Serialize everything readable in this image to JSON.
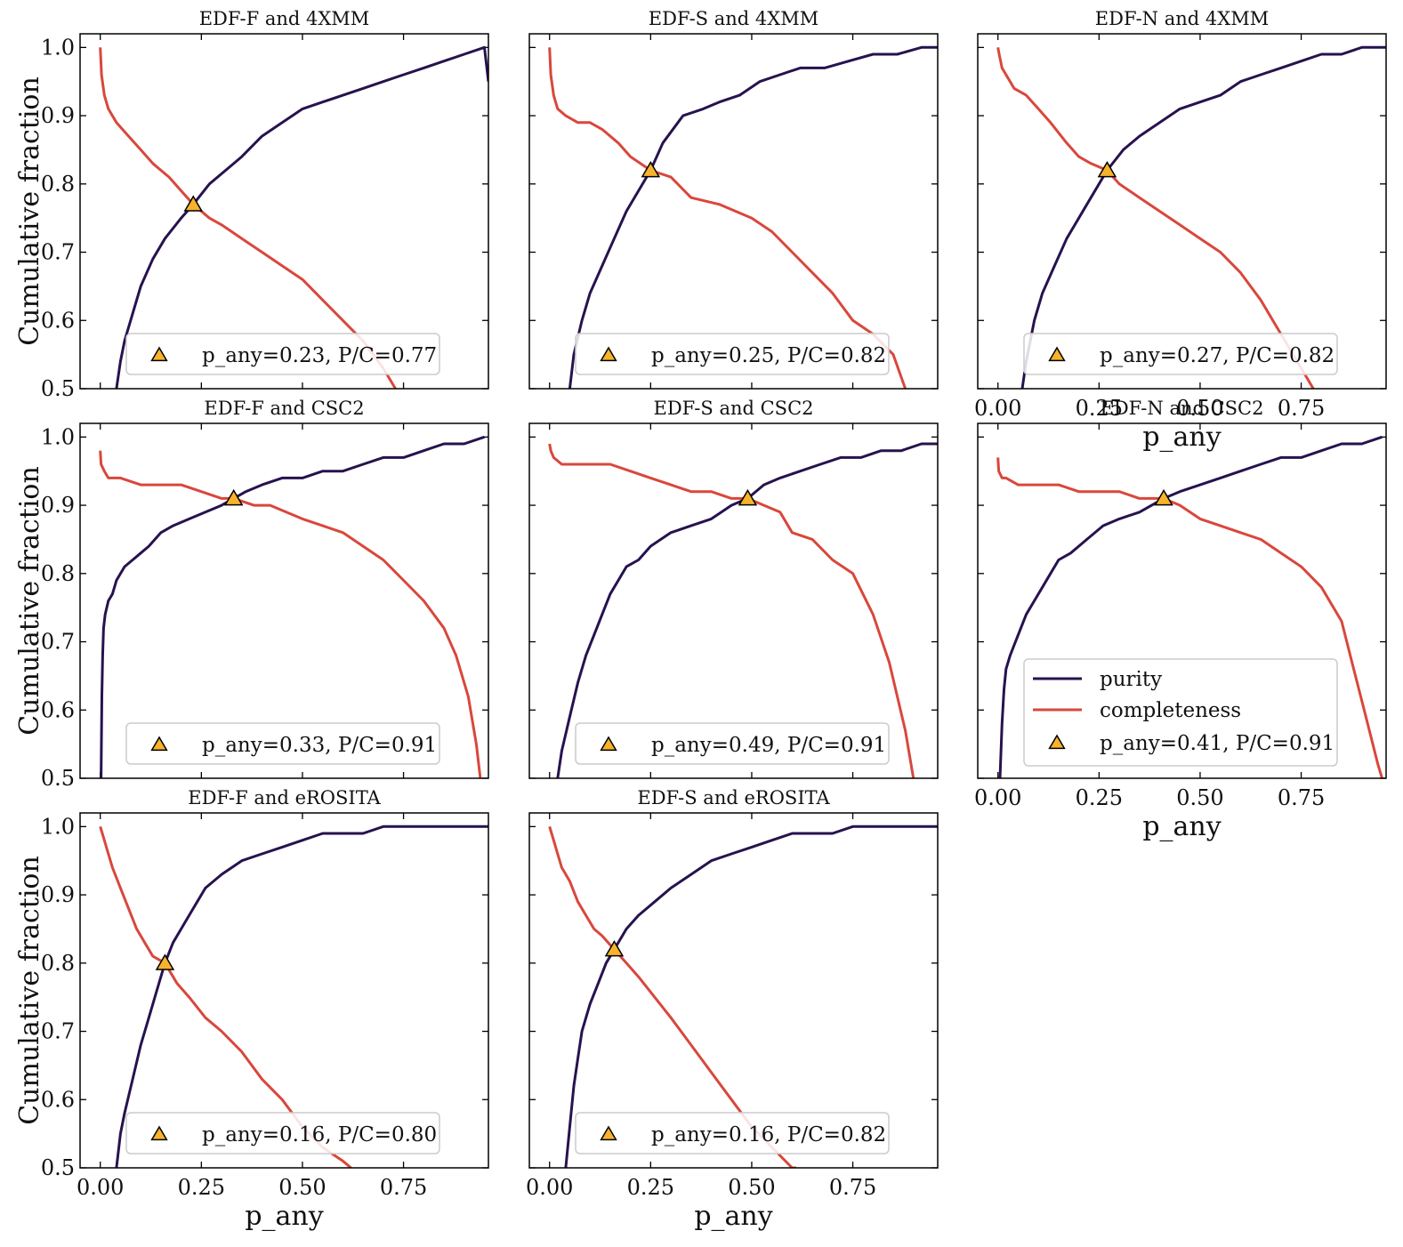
{
  "figure": {
    "ylabel": "Cumulative fraction",
    "xlabel": "p_any",
    "x_ticks": [
      "0.00",
      "0.25",
      "0.50",
      "0.75"
    ],
    "y_ticks": [
      "0.5",
      "0.6",
      "0.7",
      "0.8",
      "0.9",
      "1.0"
    ],
    "legend_labels": {
      "purity": "purity",
      "completeness": "completeness"
    },
    "colors": {
      "purity": "#27124f",
      "completeness": "#d9473c",
      "marker": "#f6b32b"
    }
  },
  "chart_data": [
    {
      "type": "line",
      "title": "EDF-F and 4XMM",
      "xlim": [
        -0.05,
        0.96
      ],
      "ylim": [
        0.5,
        1.02
      ],
      "marker": {
        "x": 0.23,
        "y": 0.77
      },
      "legend": "p_any=0.23, P/C=0.77",
      "series": [
        {
          "name": "purity",
          "x": [
            0.04,
            0.05,
            0.06,
            0.08,
            0.1,
            0.13,
            0.16,
            0.2,
            0.23,
            0.27,
            0.31,
            0.35,
            0.4,
            0.45,
            0.5,
            0.55,
            0.6,
            0.65,
            0.7,
            0.75,
            0.8,
            0.85,
            0.9,
            0.95,
            0.96
          ],
          "y": [
            0.5,
            0.54,
            0.57,
            0.61,
            0.65,
            0.69,
            0.72,
            0.75,
            0.77,
            0.8,
            0.82,
            0.84,
            0.87,
            0.89,
            0.91,
            0.92,
            0.93,
            0.94,
            0.95,
            0.96,
            0.97,
            0.98,
            0.99,
            1.0,
            0.95
          ]
        },
        {
          "name": "completeness",
          "x": [
            0.0,
            0.003,
            0.01,
            0.02,
            0.04,
            0.07,
            0.1,
            0.13,
            0.17,
            0.2,
            0.23,
            0.27,
            0.3,
            0.35,
            0.4,
            0.45,
            0.5,
            0.55,
            0.6,
            0.65,
            0.7,
            0.73
          ],
          "y": [
            1.0,
            0.96,
            0.93,
            0.91,
            0.89,
            0.87,
            0.85,
            0.83,
            0.81,
            0.79,
            0.77,
            0.75,
            0.74,
            0.72,
            0.7,
            0.68,
            0.66,
            0.63,
            0.6,
            0.57,
            0.53,
            0.5
          ]
        }
      ]
    },
    {
      "type": "line",
      "title": "EDF-S and 4XMM",
      "xlim": [
        -0.05,
        0.96
      ],
      "ylim": [
        0.5,
        1.02
      ],
      "marker": {
        "x": 0.25,
        "y": 0.82
      },
      "legend": "p_any=0.25, P/C=0.82",
      "series": [
        {
          "name": "purity",
          "x": [
            0.05,
            0.06,
            0.08,
            0.1,
            0.13,
            0.16,
            0.19,
            0.22,
            0.25,
            0.28,
            0.33,
            0.38,
            0.42,
            0.47,
            0.52,
            0.57,
            0.62,
            0.68,
            0.74,
            0.8,
            0.86,
            0.92,
            0.96
          ],
          "y": [
            0.5,
            0.55,
            0.6,
            0.64,
            0.68,
            0.72,
            0.76,
            0.79,
            0.82,
            0.86,
            0.9,
            0.91,
            0.92,
            0.93,
            0.95,
            0.96,
            0.97,
            0.97,
            0.98,
            0.99,
            0.99,
            1.0,
            1.0
          ]
        },
        {
          "name": "completeness",
          "x": [
            0.0,
            0.003,
            0.01,
            0.02,
            0.04,
            0.07,
            0.1,
            0.13,
            0.17,
            0.2,
            0.25,
            0.3,
            0.35,
            0.42,
            0.5,
            0.55,
            0.6,
            0.65,
            0.7,
            0.75,
            0.8,
            0.85,
            0.88
          ],
          "y": [
            1.0,
            0.96,
            0.93,
            0.91,
            0.9,
            0.89,
            0.89,
            0.88,
            0.86,
            0.84,
            0.82,
            0.81,
            0.78,
            0.77,
            0.75,
            0.73,
            0.7,
            0.67,
            0.64,
            0.6,
            0.58,
            0.55,
            0.5
          ]
        }
      ]
    },
    {
      "type": "line",
      "title": "EDF-N and 4XMM",
      "xlim": [
        -0.05,
        0.96
      ],
      "ylim": [
        0.5,
        1.02
      ],
      "marker": {
        "x": 0.27,
        "y": 0.82
      },
      "legend": "p_any=0.27, P/C=0.82",
      "series": [
        {
          "name": "purity",
          "x": [
            0.06,
            0.07,
            0.09,
            0.11,
            0.14,
            0.17,
            0.2,
            0.23,
            0.27,
            0.31,
            0.35,
            0.4,
            0.45,
            0.5,
            0.55,
            0.6,
            0.65,
            0.7,
            0.75,
            0.8,
            0.85,
            0.9,
            0.96
          ],
          "y": [
            0.5,
            0.54,
            0.6,
            0.64,
            0.68,
            0.72,
            0.75,
            0.78,
            0.82,
            0.85,
            0.87,
            0.89,
            0.91,
            0.92,
            0.93,
            0.95,
            0.96,
            0.97,
            0.98,
            0.99,
            0.99,
            1.0,
            1.0
          ]
        },
        {
          "name": "completeness",
          "x": [
            0.0,
            0.003,
            0.01,
            0.02,
            0.04,
            0.07,
            0.1,
            0.13,
            0.17,
            0.2,
            0.23,
            0.27,
            0.3,
            0.35,
            0.4,
            0.45,
            0.5,
            0.55,
            0.6,
            0.65,
            0.7,
            0.75,
            0.78
          ],
          "y": [
            1.0,
            0.99,
            0.97,
            0.96,
            0.94,
            0.93,
            0.91,
            0.89,
            0.86,
            0.84,
            0.83,
            0.82,
            0.8,
            0.78,
            0.76,
            0.74,
            0.72,
            0.7,
            0.67,
            0.63,
            0.58,
            0.53,
            0.5
          ]
        }
      ]
    },
    {
      "type": "line",
      "title": "EDF-F and CSC2",
      "xlim": [
        -0.05,
        0.96
      ],
      "ylim": [
        0.5,
        1.02
      ],
      "marker": {
        "x": 0.33,
        "y": 0.91
      },
      "legend": "p_any=0.33, P/C=0.91",
      "series": [
        {
          "name": "purity",
          "x": [
            0.002,
            0.004,
            0.006,
            0.008,
            0.012,
            0.02,
            0.03,
            0.04,
            0.06,
            0.08,
            0.1,
            0.12,
            0.15,
            0.18,
            0.22,
            0.26,
            0.3,
            0.33,
            0.36,
            0.4,
            0.45,
            0.5,
            0.55,
            0.6,
            0.65,
            0.7,
            0.75,
            0.8,
            0.85,
            0.9,
            0.95
          ],
          "y": [
            0.5,
            0.62,
            0.68,
            0.72,
            0.74,
            0.76,
            0.77,
            0.79,
            0.81,
            0.82,
            0.83,
            0.84,
            0.86,
            0.87,
            0.88,
            0.89,
            0.9,
            0.91,
            0.92,
            0.93,
            0.94,
            0.94,
            0.95,
            0.95,
            0.96,
            0.97,
            0.97,
            0.98,
            0.99,
            0.99,
            1.0
          ]
        },
        {
          "name": "completeness",
          "x": [
            0.0,
            0.002,
            0.01,
            0.02,
            0.05,
            0.1,
            0.15,
            0.2,
            0.25,
            0.3,
            0.33,
            0.38,
            0.42,
            0.46,
            0.5,
            0.55,
            0.6,
            0.65,
            0.7,
            0.75,
            0.8,
            0.85,
            0.88,
            0.91,
            0.93,
            0.94
          ],
          "y": [
            0.98,
            0.96,
            0.95,
            0.94,
            0.94,
            0.93,
            0.93,
            0.93,
            0.92,
            0.91,
            0.91,
            0.9,
            0.9,
            0.89,
            0.88,
            0.87,
            0.86,
            0.84,
            0.82,
            0.79,
            0.76,
            0.72,
            0.68,
            0.62,
            0.55,
            0.5
          ]
        }
      ]
    },
    {
      "type": "line",
      "title": "EDF-S and CSC2",
      "xlim": [
        -0.05,
        0.96
      ],
      "ylim": [
        0.5,
        1.02
      ],
      "marker": {
        "x": 0.49,
        "y": 0.91
      },
      "legend": "p_any=0.49, P/C=0.91",
      "series": [
        {
          "name": "purity",
          "x": [
            0.02,
            0.03,
            0.05,
            0.07,
            0.09,
            0.11,
            0.13,
            0.15,
            0.17,
            0.19,
            0.22,
            0.25,
            0.3,
            0.35,
            0.4,
            0.45,
            0.49,
            0.53,
            0.57,
            0.62,
            0.67,
            0.72,
            0.77,
            0.82,
            0.87,
            0.92,
            0.96
          ],
          "y": [
            0.5,
            0.54,
            0.59,
            0.64,
            0.68,
            0.71,
            0.74,
            0.77,
            0.79,
            0.81,
            0.82,
            0.84,
            0.86,
            0.87,
            0.88,
            0.9,
            0.91,
            0.93,
            0.94,
            0.95,
            0.96,
            0.97,
            0.97,
            0.98,
            0.98,
            0.99,
            0.99
          ]
        },
        {
          "name": "completeness",
          "x": [
            0.0,
            0.003,
            0.01,
            0.03,
            0.05,
            0.1,
            0.15,
            0.2,
            0.25,
            0.3,
            0.35,
            0.4,
            0.45,
            0.49,
            0.53,
            0.57,
            0.6,
            0.65,
            0.7,
            0.75,
            0.8,
            0.84,
            0.88,
            0.9
          ],
          "y": [
            0.99,
            0.98,
            0.97,
            0.96,
            0.96,
            0.96,
            0.96,
            0.95,
            0.94,
            0.93,
            0.92,
            0.92,
            0.91,
            0.91,
            0.9,
            0.89,
            0.86,
            0.85,
            0.82,
            0.8,
            0.74,
            0.67,
            0.57,
            0.5
          ]
        }
      ]
    },
    {
      "type": "line",
      "title": "EDF-N and CSC2",
      "xlim": [
        -0.05,
        0.96
      ],
      "ylim": [
        0.5,
        1.02
      ],
      "marker": {
        "x": 0.41,
        "y": 0.91
      },
      "legend": "p_any=0.41, P/C=0.91",
      "series": [
        {
          "name": "purity",
          "x": [
            0.005,
            0.01,
            0.015,
            0.02,
            0.03,
            0.05,
            0.07,
            0.09,
            0.11,
            0.13,
            0.15,
            0.18,
            0.22,
            0.26,
            0.3,
            0.35,
            0.41,
            0.45,
            0.5,
            0.55,
            0.6,
            0.65,
            0.7,
            0.75,
            0.8,
            0.85,
            0.9,
            0.95
          ],
          "y": [
            0.5,
            0.58,
            0.63,
            0.66,
            0.68,
            0.71,
            0.74,
            0.76,
            0.78,
            0.8,
            0.82,
            0.83,
            0.85,
            0.87,
            0.88,
            0.89,
            0.91,
            0.92,
            0.93,
            0.94,
            0.95,
            0.96,
            0.97,
            0.97,
            0.98,
            0.99,
            0.99,
            1.0
          ]
        },
        {
          "name": "completeness",
          "x": [
            0.0,
            0.002,
            0.01,
            0.02,
            0.05,
            0.1,
            0.15,
            0.2,
            0.25,
            0.3,
            0.35,
            0.41,
            0.45,
            0.5,
            0.55,
            0.6,
            0.65,
            0.7,
            0.75,
            0.8,
            0.85,
            0.88,
            0.91,
            0.94,
            0.95
          ],
          "y": [
            0.97,
            0.95,
            0.94,
            0.94,
            0.93,
            0.93,
            0.93,
            0.92,
            0.92,
            0.92,
            0.91,
            0.91,
            0.9,
            0.88,
            0.87,
            0.86,
            0.85,
            0.83,
            0.81,
            0.78,
            0.73,
            0.66,
            0.59,
            0.52,
            0.5
          ]
        }
      ]
    },
    {
      "type": "line",
      "title": "EDF-F and eROSITA",
      "xlim": [
        -0.05,
        0.96
      ],
      "ylim": [
        0.5,
        1.02
      ],
      "marker": {
        "x": 0.16,
        "y": 0.8
      },
      "legend": "p_any=0.16, P/C=0.80",
      "series": [
        {
          "name": "purity",
          "x": [
            0.04,
            0.05,
            0.06,
            0.08,
            0.1,
            0.12,
            0.14,
            0.16,
            0.18,
            0.2,
            0.23,
            0.26,
            0.3,
            0.35,
            0.4,
            0.45,
            0.5,
            0.55,
            0.6,
            0.65,
            0.7,
            0.75,
            0.8,
            0.85,
            0.9,
            0.96
          ],
          "y": [
            0.5,
            0.55,
            0.58,
            0.63,
            0.68,
            0.72,
            0.76,
            0.8,
            0.83,
            0.85,
            0.88,
            0.91,
            0.93,
            0.95,
            0.96,
            0.97,
            0.98,
            0.99,
            0.99,
            0.99,
            1.0,
            1.0,
            1.0,
            1.0,
            1.0,
            1.0
          ]
        },
        {
          "name": "completeness",
          "x": [
            0.0,
            0.01,
            0.02,
            0.03,
            0.05,
            0.07,
            0.09,
            0.11,
            0.13,
            0.16,
            0.19,
            0.22,
            0.26,
            0.3,
            0.35,
            0.4,
            0.45,
            0.5,
            0.55,
            0.6,
            0.62
          ],
          "y": [
            1.0,
            0.98,
            0.96,
            0.94,
            0.91,
            0.88,
            0.85,
            0.83,
            0.81,
            0.8,
            0.77,
            0.75,
            0.72,
            0.7,
            0.67,
            0.63,
            0.6,
            0.56,
            0.53,
            0.51,
            0.5
          ]
        }
      ]
    },
    {
      "type": "line",
      "title": "EDF-S and eROSITA",
      "xlim": [
        -0.05,
        0.96
      ],
      "ylim": [
        0.5,
        1.02
      ],
      "marker": {
        "x": 0.16,
        "y": 0.82
      },
      "legend": "p_any=0.16, P/C=0.82",
      "series": [
        {
          "name": "purity",
          "x": [
            0.04,
            0.05,
            0.06,
            0.07,
            0.08,
            0.1,
            0.12,
            0.14,
            0.16,
            0.19,
            0.22,
            0.26,
            0.3,
            0.35,
            0.4,
            0.45,
            0.5,
            0.55,
            0.6,
            0.65,
            0.7,
            0.75,
            0.8,
            0.85,
            0.9,
            0.96
          ],
          "y": [
            0.5,
            0.56,
            0.62,
            0.66,
            0.7,
            0.74,
            0.77,
            0.8,
            0.82,
            0.85,
            0.87,
            0.89,
            0.91,
            0.93,
            0.95,
            0.96,
            0.97,
            0.98,
            0.99,
            0.99,
            0.99,
            1.0,
            1.0,
            1.0,
            1.0,
            1.0
          ]
        },
        {
          "name": "completeness",
          "x": [
            0.0,
            0.01,
            0.02,
            0.03,
            0.05,
            0.07,
            0.09,
            0.11,
            0.13,
            0.16,
            0.19,
            0.22,
            0.26,
            0.3,
            0.35,
            0.4,
            0.45,
            0.5,
            0.55,
            0.6,
            0.61
          ],
          "y": [
            1.0,
            0.98,
            0.96,
            0.94,
            0.92,
            0.89,
            0.87,
            0.85,
            0.84,
            0.82,
            0.8,
            0.78,
            0.75,
            0.72,
            0.68,
            0.64,
            0.6,
            0.56,
            0.53,
            0.5,
            0.5
          ]
        }
      ]
    }
  ]
}
